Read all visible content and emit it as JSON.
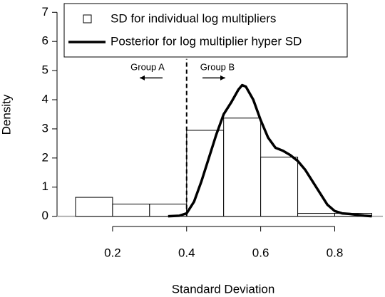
{
  "chart_data": {
    "type": "histogram",
    "xlabel": "Standard Deviation",
    "ylabel": "Density",
    "xlim": [
      0.05,
      0.93
    ],
    "ylim": [
      -0.35,
      7.3
    ],
    "xticks": [
      0.2,
      0.4,
      0.6,
      0.8
    ],
    "yticks": [
      0,
      1,
      2,
      3,
      4,
      5,
      6,
      7
    ],
    "histogram": {
      "name": "SD for individual log multipliers",
      "bins": [
        0.1,
        0.2,
        0.3,
        0.4,
        0.5,
        0.6,
        0.7,
        0.8,
        0.9
      ],
      "counts": [
        0.65,
        0.42,
        0.42,
        2.95,
        3.37,
        2.03,
        0.1,
        0.1
      ],
      "color": "#ffffff"
    },
    "line": {
      "name": "Posterior for log multiplier hyper SD",
      "color": "#000000",
      "x": [
        0.35,
        0.38,
        0.4,
        0.42,
        0.44,
        0.46,
        0.48,
        0.5,
        0.52,
        0.54,
        0.55,
        0.56,
        0.58,
        0.6,
        0.62,
        0.64,
        0.66,
        0.68,
        0.7,
        0.72,
        0.74,
        0.76,
        0.78,
        0.8,
        0.82,
        0.84,
        0.86,
        0.88,
        0.9
      ],
      "values": [
        0,
        0.02,
        0.1,
        0.5,
        1.2,
        2.0,
        2.8,
        3.5,
        3.9,
        4.35,
        4.5,
        4.45,
        4.0,
        3.3,
        2.7,
        2.35,
        2.25,
        2.1,
        1.9,
        1.6,
        1.2,
        0.8,
        0.4,
        0.18,
        0.1,
        0.08,
        0.05,
        0.02,
        0
      ]
    },
    "threshold": 0.4,
    "annotations": [
      "Group A",
      "Group B"
    ]
  }
}
